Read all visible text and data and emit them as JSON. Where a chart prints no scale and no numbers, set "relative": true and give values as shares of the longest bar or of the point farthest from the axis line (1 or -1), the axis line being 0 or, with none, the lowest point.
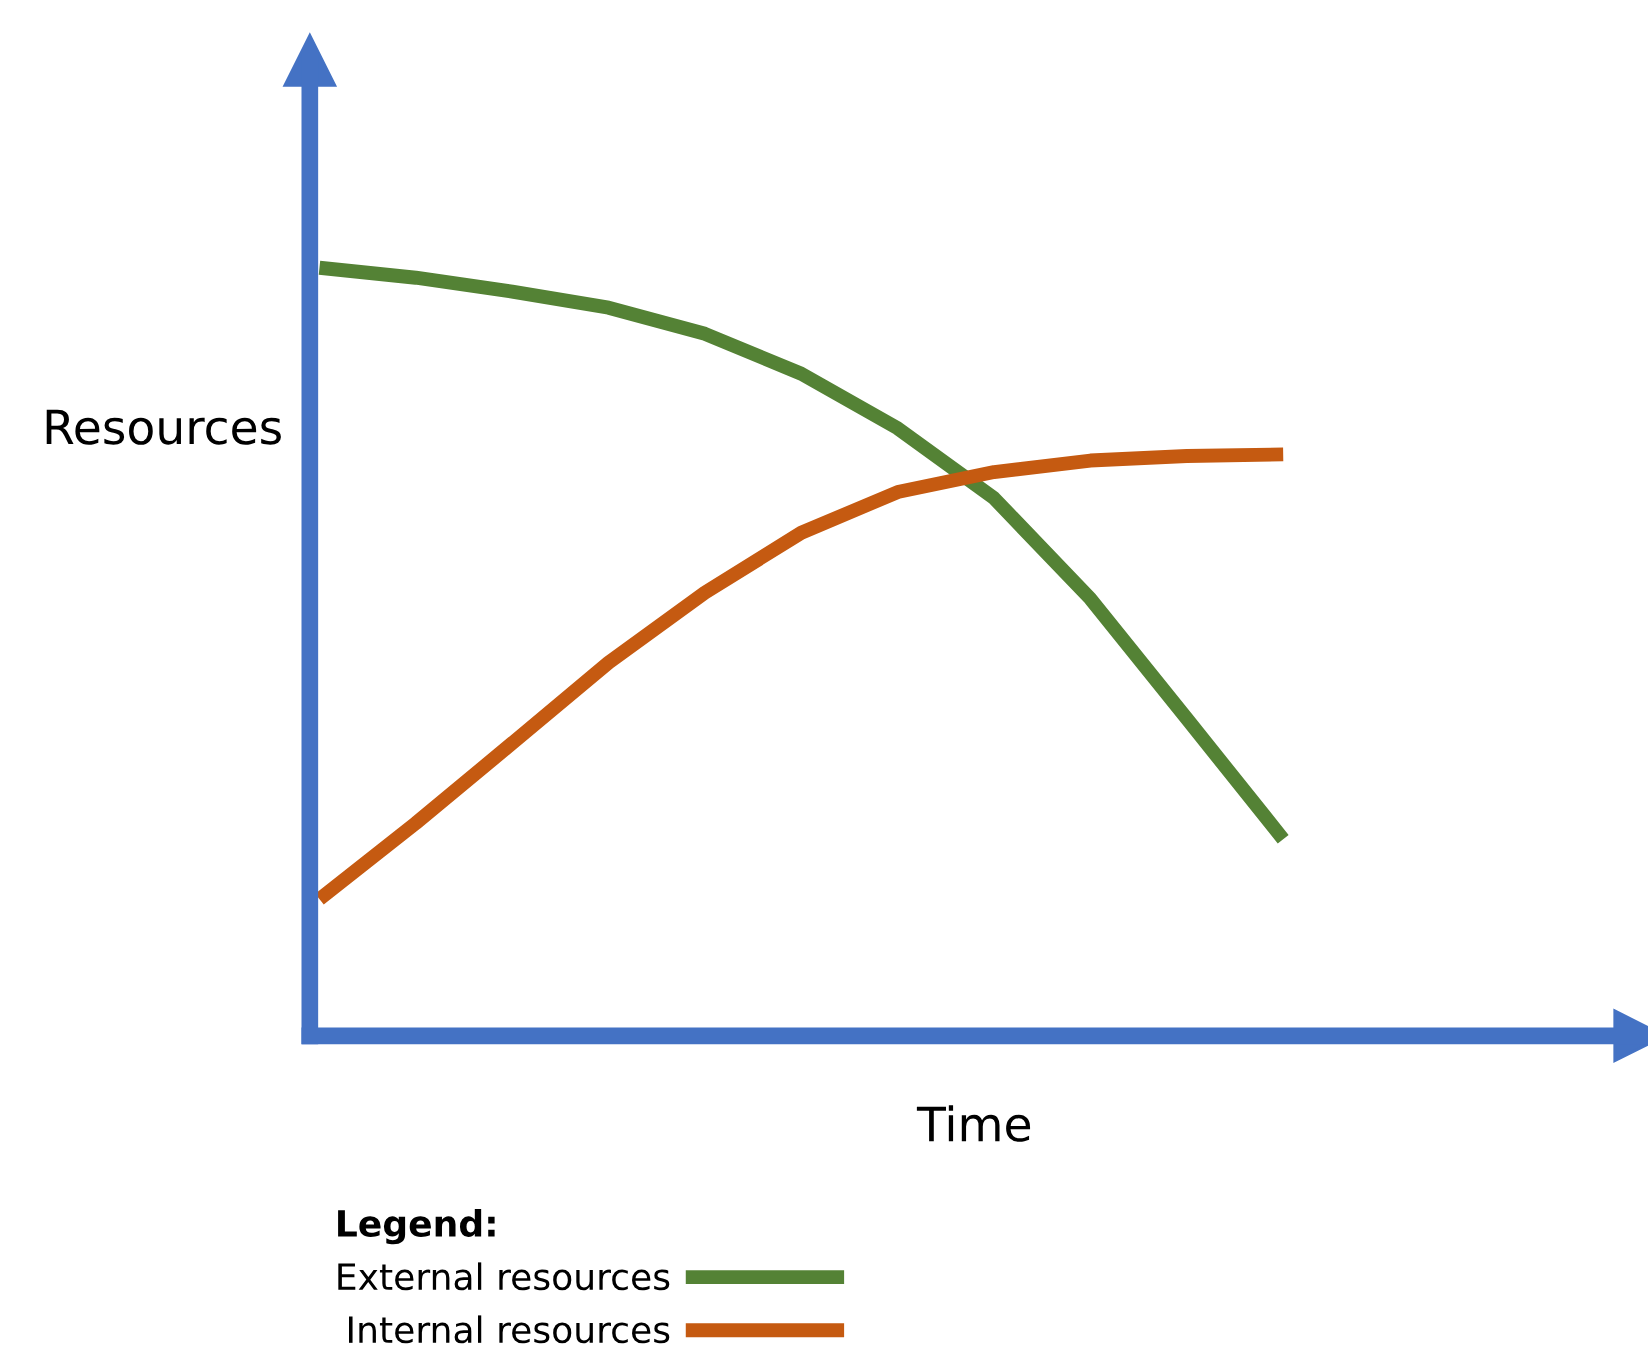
{
  "chart_data": {
    "type": "line",
    "relative": true,
    "xlabel": "Time",
    "ylabel": "Resources",
    "legend_title": "Legend:",
    "legend": "bottom",
    "marker": "none",
    "line_style": "solid",
    "categories": [
      null,
      null,
      null,
      null,
      null,
      null,
      null,
      null,
      null,
      null,
      null
    ],
    "series": [
      {
        "name": "External resources",
        "color": "#548235",
        "values": [
          1,
          0.987,
          0.969,
          0.948,
          0.914,
          0.862,
          0.791,
          0.7,
          0.569,
          0.413,
          0.256
        ]
      },
      {
        "name": "Internal resources",
        "color": "#c55a11",
        "values": [
          0.178,
          0.277,
          0.381,
          0.486,
          0.577,
          0.655,
          0.708,
          0.734,
          0.749,
          0.755,
          0.757
        ]
      }
    ]
  }
}
